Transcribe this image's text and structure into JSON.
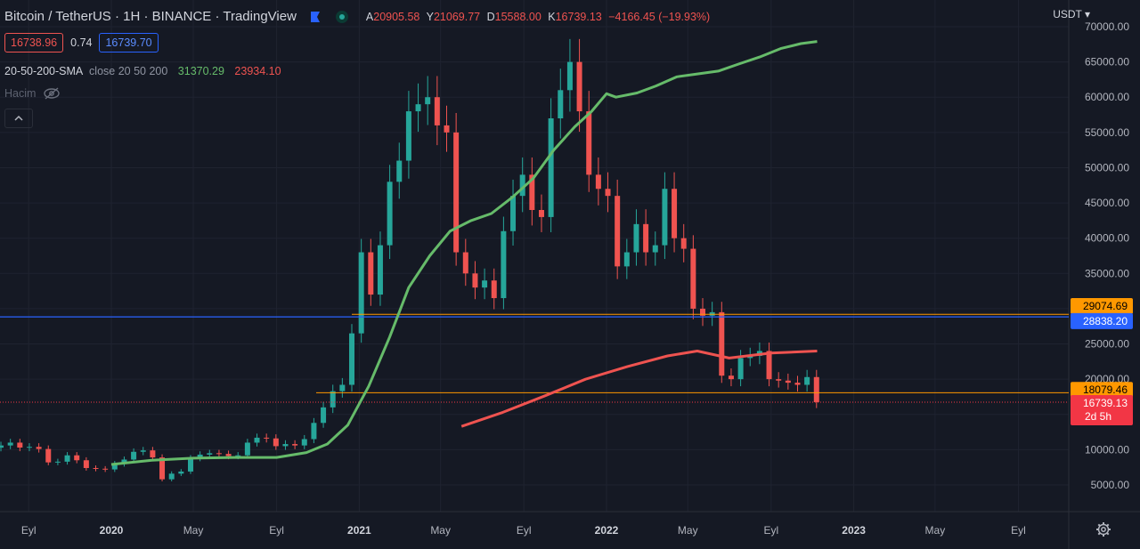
{
  "header": {
    "title": "Bitcoin / TetherUS · 1H · BINANCE · TradingView",
    "ohlc": [
      {
        "key": "A",
        "value": "20905.58"
      },
      {
        "key": "Y",
        "value": "21069.77"
      },
      {
        "key": "D",
        "value": "15588.00"
      },
      {
        "key": "K",
        "value": "16739.13"
      }
    ],
    "change": "−4166.45 (−19.93%)",
    "sell_price": "16738.96",
    "spread": "0.74",
    "buy_price": "16739.70"
  },
  "indicator": {
    "name": "20-50-200-SMA",
    "params": "close 20 50 200",
    "value1": "31370.29",
    "value2": "23934.10"
  },
  "volume": {
    "label": "Hacim",
    "icon": "eye-off-icon"
  },
  "collapse_icon": "chevron-up-icon",
  "currency": "USDT",
  "settings_icon": "gear-icon",
  "colors": {
    "background": "#151924",
    "up": "#26a69a",
    "down": "#ef5350",
    "sma50": "#66bb6a",
    "sma200": "#ef5350",
    "blue_line": "#2962ff",
    "orange_line": "#ff9800",
    "last_price_tag": "#f23645"
  },
  "chart_data": {
    "type": "candlestick",
    "y_axis": {
      "ticks": [
        5000,
        10000,
        15000,
        20000,
        25000,
        30000,
        35000,
        40000,
        45000,
        50000,
        55000,
        60000,
        65000,
        70000
      ],
      "tick_labels": [
        "5000.00",
        "10000.00",
        "15000.00",
        "20000.00",
        "25000.00",
        "30000.00",
        "35000.00",
        "40000.00",
        "45000.00",
        "50000.00",
        "55000.00",
        "60000.00",
        "65000.00",
        "70000.00"
      ],
      "ylim": [
        2000,
        72000
      ]
    },
    "x_axis": {
      "labels": [
        {
          "date": "2019-09-01",
          "text": "Eyl",
          "bold": false
        },
        {
          "date": "2020-01-01",
          "text": "2020",
          "bold": true
        },
        {
          "date": "2020-05-01",
          "text": "May",
          "bold": false
        },
        {
          "date": "2020-09-01",
          "text": "Eyl",
          "bold": false
        },
        {
          "date": "2021-01-01",
          "text": "2021",
          "bold": true
        },
        {
          "date": "2021-05-01",
          "text": "May",
          "bold": false
        },
        {
          "date": "2021-09-01",
          "text": "Eyl",
          "bold": false
        },
        {
          "date": "2022-01-01",
          "text": "2022",
          "bold": true
        },
        {
          "date": "2022-05-01",
          "text": "May",
          "bold": false
        },
        {
          "date": "2022-09-01",
          "text": "Eyl",
          "bold": false
        },
        {
          "date": "2023-01-01",
          "text": "2023",
          "bold": true
        },
        {
          "date": "2023-05-01",
          "text": "May",
          "bold": false
        },
        {
          "date": "2023-09-01",
          "text": "Eyl",
          "bold": false
        }
      ]
    },
    "close_series": [
      [
        "2019-07-22",
        10600
      ],
      [
        "2019-08-05",
        11000
      ],
      [
        "2019-08-19",
        10300
      ],
      [
        "2019-09-02",
        10400
      ],
      [
        "2019-09-16",
        10100
      ],
      [
        "2019-09-30",
        8200
      ],
      [
        "2019-10-14",
        8300
      ],
      [
        "2019-10-28",
        9200
      ],
      [
        "2019-11-11",
        8500
      ],
      [
        "2019-11-25",
        7400
      ],
      [
        "2019-12-09",
        7300
      ],
      [
        "2019-12-23",
        7200
      ],
      [
        "2020-01-06",
        8000
      ],
      [
        "2020-01-20",
        8600
      ],
      [
        "2020-02-03",
        9700
      ],
      [
        "2020-02-17",
        9900
      ],
      [
        "2020-03-02",
        8900
      ],
      [
        "2020-03-16",
        5800
      ],
      [
        "2020-03-30",
        6600
      ],
      [
        "2020-04-13",
        6900
      ],
      [
        "2020-04-27",
        8800
      ],
      [
        "2020-05-11",
        9300
      ],
      [
        "2020-05-25",
        9500
      ],
      [
        "2020-06-08",
        9400
      ],
      [
        "2020-06-22",
        9100
      ],
      [
        "2020-07-06",
        9200
      ],
      [
        "2020-07-20",
        11000
      ],
      [
        "2020-08-03",
        11700
      ],
      [
        "2020-08-17",
        11600
      ],
      [
        "2020-08-31",
        10500
      ],
      [
        "2020-09-14",
        10800
      ],
      [
        "2020-09-28",
        10600
      ],
      [
        "2020-10-12",
        11500
      ],
      [
        "2020-10-26",
        13800
      ],
      [
        "2020-11-09",
        16000
      ],
      [
        "2020-11-23",
        18300
      ],
      [
        "2020-12-07",
        19200
      ],
      [
        "2020-12-21",
        26500
      ],
      [
        "2021-01-04",
        38000
      ],
      [
        "2021-01-18",
        32000
      ],
      [
        "2021-02-01",
        39000
      ],
      [
        "2021-02-15",
        48000
      ],
      [
        "2021-03-01",
        51000
      ],
      [
        "2021-03-15",
        58000
      ],
      [
        "2021-03-29",
        59000
      ],
      [
        "2021-04-12",
        60000
      ],
      [
        "2021-04-26",
        56000
      ],
      [
        "2021-05-10",
        55000
      ],
      [
        "2021-05-24",
        38000
      ],
      [
        "2021-06-07",
        35000
      ],
      [
        "2021-06-21",
        33000
      ],
      [
        "2021-07-05",
        34000
      ],
      [
        "2021-07-19",
        31500
      ],
      [
        "2021-08-02",
        41000
      ],
      [
        "2021-08-16",
        46000
      ],
      [
        "2021-08-30",
        49000
      ],
      [
        "2021-09-13",
        44000
      ],
      [
        "2021-09-27",
        43000
      ],
      [
        "2021-10-11",
        57000
      ],
      [
        "2021-10-25",
        61000
      ],
      [
        "2021-11-08",
        65000
      ],
      [
        "2021-11-22",
        58000
      ],
      [
        "2021-12-06",
        49000
      ],
      [
        "2021-12-20",
        47000
      ],
      [
        "2022-01-03",
        46000
      ],
      [
        "2022-01-17",
        36000
      ],
      [
        "2022-01-31",
        38000
      ],
      [
        "2022-02-14",
        42000
      ],
      [
        "2022-02-28",
        38000
      ],
      [
        "2022-03-14",
        39000
      ],
      [
        "2022-03-28",
        47000
      ],
      [
        "2022-04-11",
        40000
      ],
      [
        "2022-04-25",
        38500
      ],
      [
        "2022-05-09",
        30000
      ],
      [
        "2022-05-23",
        29000
      ],
      [
        "2022-06-06",
        29500
      ],
      [
        "2022-06-20",
        20500
      ],
      [
        "2022-07-04",
        20000
      ],
      [
        "2022-07-18",
        23000
      ],
      [
        "2022-08-01",
        23300
      ],
      [
        "2022-08-15",
        24000
      ],
      [
        "2022-08-29",
        20000
      ],
      [
        "2022-09-12",
        19800
      ],
      [
        "2022-09-26",
        19500
      ],
      [
        "2022-10-10",
        19200
      ],
      [
        "2022-10-24",
        20300
      ],
      [
        "2022-11-07",
        16739
      ]
    ],
    "series": [
      {
        "type": "line",
        "values": [
          [
            "2020-01-01",
            7900
          ],
          [
            "2020-03-01",
            8500
          ],
          [
            "2020-05-01",
            8800
          ],
          [
            "2020-07-01",
            8900
          ],
          [
            "2020-09-01",
            8900
          ],
          [
            "2020-10-15",
            9600
          ],
          [
            "2020-11-15",
            10800
          ],
          [
            "2020-12-15",
            13500
          ],
          [
            "2021-01-15",
            19000
          ],
          [
            "2021-02-15",
            26000
          ],
          [
            "2021-03-15",
            33000
          ],
          [
            "2021-04-15",
            37500
          ],
          [
            "2021-05-15",
            41000
          ],
          [
            "2021-06-15",
            42500
          ],
          [
            "2021-07-15",
            43500
          ],
          [
            "2021-08-15",
            45800
          ],
          [
            "2021-09-15",
            48500
          ],
          [
            "2021-10-15",
            52500
          ],
          [
            "2021-11-15",
            55800
          ],
          [
            "2021-12-10",
            58000
          ],
          [
            "2022-01-01",
            60500
          ],
          [
            "2022-01-15",
            60000
          ],
          [
            "2022-02-15",
            60600
          ],
          [
            "2022-03-15",
            61600
          ],
          [
            "2022-04-15",
            62900
          ],
          [
            "2022-05-15",
            63300
          ],
          [
            "2022-06-15",
            63700
          ],
          [
            "2022-07-15",
            64700
          ],
          [
            "2022-08-15",
            65700
          ],
          [
            "2022-09-15",
            66900
          ],
          [
            "2022-10-15",
            67600
          ],
          [
            "2022-11-08",
            67900
          ]
        ]
      },
      {
        "type": "line",
        "values": [
          [
            "2021-06-01",
            13300
          ],
          [
            "2021-08-01",
            15300
          ],
          [
            "2021-10-01",
            17600
          ],
          [
            "2021-12-01",
            20000
          ],
          [
            "2022-02-01",
            21800
          ],
          [
            "2022-04-01",
            23300
          ],
          [
            "2022-05-15",
            24000
          ],
          [
            "2022-07-01",
            23000
          ],
          [
            "2022-09-01",
            23700
          ],
          [
            "2022-11-08",
            24000
          ]
        ]
      }
    ],
    "horizontal_lines": [
      {
        "value": 29074.69,
        "label": "29074.69",
        "color": "#ff9800",
        "text_color": "#000000"
      },
      {
        "value": 28838.2,
        "label": "28838.20",
        "color": "#2962ff",
        "text_color": "#ffffff"
      },
      {
        "value": 18079.46,
        "label": "18079.46",
        "color": "#ff9800",
        "text_color": "#000000"
      }
    ],
    "last_price": {
      "label": "16739.13",
      "sub": "2d 5h"
    }
  }
}
